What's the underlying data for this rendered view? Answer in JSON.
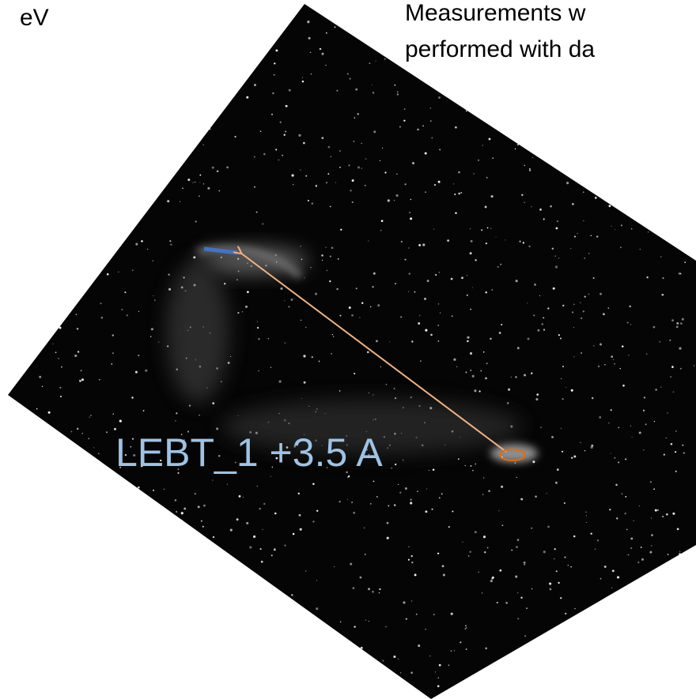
{
  "slide": {
    "left_text": "eV",
    "right_text_lines": [
      "Measurements w",
      "performed with da"
    ],
    "image_label": "LEBT_1 +3.5 A"
  }
}
